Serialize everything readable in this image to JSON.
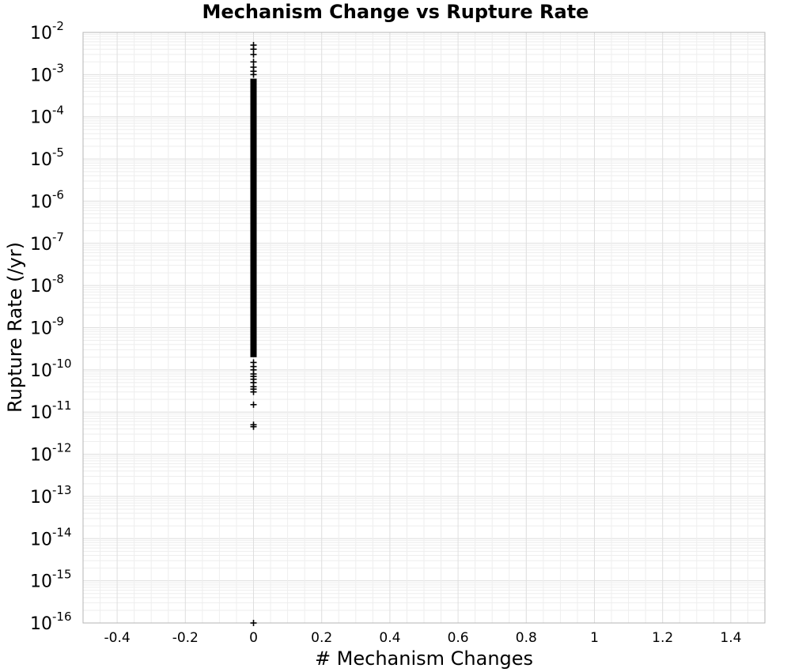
{
  "chart_data": {
    "type": "scatter",
    "title": "Mechanism Change vs Rupture Rate",
    "xlabel": "# Mechanism Changes",
    "ylabel": "Rupture Rate (/yr)",
    "xlim": [
      -0.5,
      1.5
    ],
    "ylim": [
      1e-16,
      0.01
    ],
    "y_scale": "log",
    "grid": true,
    "legend": "none",
    "marker": "plus",
    "color": "#000000",
    "x_ticks": [
      {
        "value": -0.4,
        "label": "-0.4"
      },
      {
        "value": -0.2,
        "label": "-0.2"
      },
      {
        "value": 0,
        "label": "0"
      },
      {
        "value": 0.2,
        "label": "0.2"
      },
      {
        "value": 0.4,
        "label": "0.4"
      },
      {
        "value": 0.6,
        "label": "0.6"
      },
      {
        "value": 0.8,
        "label": "0.8"
      },
      {
        "value": 1,
        "label": "1"
      },
      {
        "value": 1.2,
        "label": "1.2"
      },
      {
        "value": 1.4,
        "label": "1.4"
      }
    ],
    "y_ticks": [
      {
        "value": 1e-16,
        "base": "10",
        "exp": "-16"
      },
      {
        "value": 1e-15,
        "base": "10",
        "exp": "-15"
      },
      {
        "value": 1e-14,
        "base": "10",
        "exp": "-14"
      },
      {
        "value": 1e-13,
        "base": "10",
        "exp": "-13"
      },
      {
        "value": 1e-12,
        "base": "10",
        "exp": "-12"
      },
      {
        "value": 1e-11,
        "base": "10",
        "exp": "-11"
      },
      {
        "value": 1e-10,
        "base": "10",
        "exp": "-10"
      },
      {
        "value": 1e-09,
        "base": "10",
        "exp": "-9"
      },
      {
        "value": 1e-08,
        "base": "10",
        "exp": "-8"
      },
      {
        "value": 1e-07,
        "base": "10",
        "exp": "-7"
      },
      {
        "value": 1e-06,
        "base": "10",
        "exp": "-6"
      },
      {
        "value": 1e-05,
        "base": "10",
        "exp": "-5"
      },
      {
        "value": 0.0001,
        "base": "10",
        "exp": "-4"
      },
      {
        "value": 0.001,
        "base": "10",
        "exp": "-3"
      },
      {
        "value": 0.01,
        "base": "10",
        "exp": "-2"
      }
    ],
    "series": [
      {
        "dense_range": [
          2e-10,
          0.0008
        ],
        "points": [
          {
            "x": 0,
            "y": 1e-16
          },
          {
            "x": 0,
            "y": 4.5e-12
          },
          {
            "x": 0,
            "y": 5e-12
          },
          {
            "x": 0,
            "y": 1.5e-11
          },
          {
            "x": 0,
            "y": 3e-11
          },
          {
            "x": 0,
            "y": 3.5e-11
          },
          {
            "x": 0,
            "y": 4e-11
          },
          {
            "x": 0,
            "y": 5e-11
          },
          {
            "x": 0,
            "y": 6e-11
          },
          {
            "x": 0,
            "y": 7e-11
          },
          {
            "x": 0,
            "y": 8e-11
          },
          {
            "x": 0,
            "y": 1e-10
          },
          {
            "x": 0,
            "y": 1.2e-10
          },
          {
            "x": 0,
            "y": 1.5e-10
          },
          {
            "x": 0,
            "y": 0.001
          },
          {
            "x": 0,
            "y": 0.0012
          },
          {
            "x": 0,
            "y": 0.0015
          },
          {
            "x": 0,
            "y": 0.002
          },
          {
            "x": 0,
            "y": 0.003
          },
          {
            "x": 0,
            "y": 0.004
          },
          {
            "x": 0,
            "y": 0.005
          }
        ]
      }
    ]
  }
}
